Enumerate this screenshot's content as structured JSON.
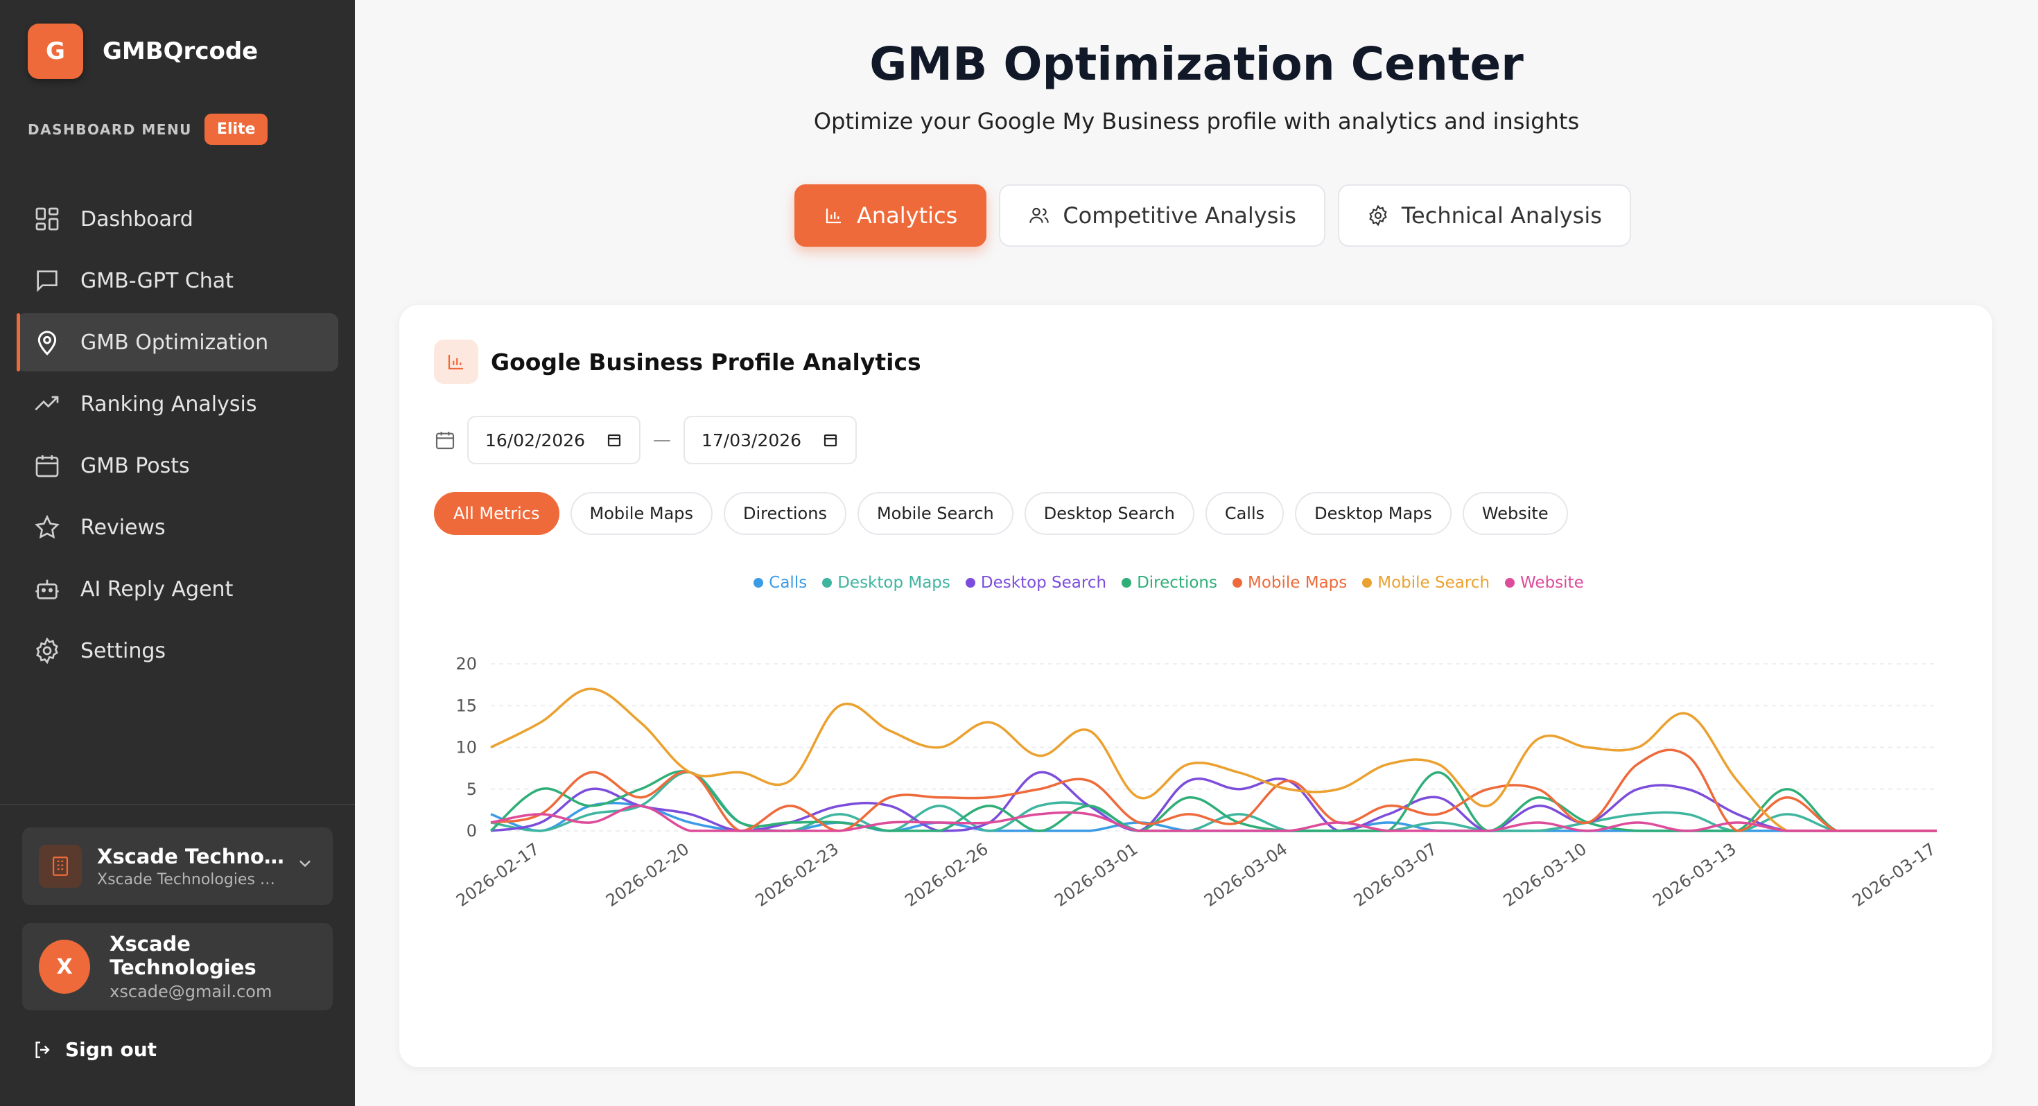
{
  "brand": {
    "logo_letter": "G",
    "name": "GMBQrcode"
  },
  "menu": {
    "heading": "DASHBOARD MENU",
    "plan_badge": "Elite"
  },
  "nav": [
    {
      "label": "Dashboard",
      "icon": "grid-icon",
      "active": false
    },
    {
      "label": "GMB-GPT Chat",
      "icon": "chat-icon",
      "active": false
    },
    {
      "label": "GMB Optimization",
      "icon": "map-pin-icon",
      "active": true
    },
    {
      "label": "Ranking Analysis",
      "icon": "trending-up-icon",
      "active": false
    },
    {
      "label": "GMB Posts",
      "icon": "calendar-icon",
      "active": false
    },
    {
      "label": "Reviews",
      "icon": "star-icon",
      "active": false
    },
    {
      "label": "AI Reply Agent",
      "icon": "bot-icon",
      "active": false
    },
    {
      "label": "Settings",
      "icon": "gear-icon",
      "active": false
    }
  ],
  "business": {
    "name": "Xscade Technolog...",
    "subtitle": "Xscade Technologies Pv..."
  },
  "user": {
    "initial": "X",
    "name": "Xscade Technologies",
    "email": "xscade@gmail.com"
  },
  "signout_label": "Sign out",
  "page": {
    "title": "GMB Optimization Center",
    "subtitle": "Optimize your Google My Business profile with analytics and insights"
  },
  "tabs": [
    {
      "label": "Analytics",
      "icon": "bar-chart-icon",
      "active": true
    },
    {
      "label": "Competitive Analysis",
      "icon": "users-icon",
      "active": false
    },
    {
      "label": "Technical Analysis",
      "icon": "gear-icon",
      "active": false
    }
  ],
  "analytics_card": {
    "title": "Google Business Profile Analytics",
    "start_date": "16/02/2026",
    "end_date": "17/03/2026",
    "date_separator": "—",
    "filters": [
      "All Metrics",
      "Mobile Maps",
      "Directions",
      "Mobile Search",
      "Desktop Search",
      "Calls",
      "Desktop Maps",
      "Website"
    ],
    "active_filter": "All Metrics"
  },
  "colors": {
    "accent": "#ef6a3a",
    "sidebar_bg": "#2d2d2d"
  },
  "chart_data": {
    "type": "line",
    "grid": true,
    "legend_position": "top-center",
    "ylim": [
      0,
      20
    ],
    "yticks": [
      0,
      5,
      10,
      15,
      20
    ],
    "x_tick_labels": [
      "2026-02-17",
      "2026-02-20",
      "2026-02-23",
      "2026-02-26",
      "2026-03-01",
      "2026-03-04",
      "2026-03-07",
      "2026-03-10",
      "2026-03-13",
      "2026-03-17"
    ],
    "x": [
      "2026-02-16",
      "2026-02-17",
      "2026-02-18",
      "2026-02-19",
      "2026-02-20",
      "2026-02-21",
      "2026-02-22",
      "2026-02-23",
      "2026-02-24",
      "2026-02-25",
      "2026-02-26",
      "2026-02-27",
      "2026-02-28",
      "2026-03-01",
      "2026-03-02",
      "2026-03-03",
      "2026-03-04",
      "2026-03-05",
      "2026-03-06",
      "2026-03-07",
      "2026-03-08",
      "2026-03-09",
      "2026-03-10",
      "2026-03-11",
      "2026-03-12",
      "2026-03-13",
      "2026-03-14",
      "2026-03-15",
      "2026-03-16",
      "2026-03-17"
    ],
    "series": [
      {
        "name": "Calls",
        "color": "#3b9be5",
        "values": [
          2,
          0,
          3,
          3,
          1,
          0,
          0,
          1,
          0,
          1,
          0,
          0,
          0,
          1,
          0,
          0,
          0,
          0,
          1,
          0,
          0,
          0,
          0,
          0,
          0,
          0,
          0,
          0,
          0,
          0
        ]
      },
      {
        "name": "Desktop Maps",
        "color": "#3fb5a0",
        "values": [
          1,
          0,
          2,
          3,
          7,
          1,
          0,
          2,
          0,
          3,
          0,
          3,
          3,
          0,
          0,
          2,
          0,
          0,
          0,
          1,
          0,
          0,
          1,
          2,
          2,
          0,
          2,
          0,
          0,
          0
        ]
      },
      {
        "name": "Desktop Search",
        "color": "#7c4ddb",
        "values": [
          0,
          1,
          5,
          3,
          2,
          0,
          1,
          3,
          3,
          0,
          1,
          7,
          3,
          0,
          6,
          5,
          6,
          0,
          2,
          4,
          0,
          3,
          1,
          5,
          5,
          2,
          0,
          0,
          0,
          0
        ]
      },
      {
        "name": "Directions",
        "color": "#2fae78",
        "values": [
          0,
          5,
          3,
          5,
          7,
          1,
          1,
          1,
          0,
          0,
          3,
          0,
          3,
          0,
          4,
          1,
          0,
          0,
          0,
          7,
          0,
          4,
          1,
          0,
          0,
          0,
          5,
          0,
          0,
          0
        ]
      },
      {
        "name": "Mobile Maps",
        "color": "#ee6a3a",
        "values": [
          1,
          2,
          7,
          4,
          7,
          0,
          3,
          0,
          4,
          4,
          4,
          5,
          6,
          1,
          2,
          1,
          6,
          1,
          3,
          2,
          5,
          5,
          1,
          8,
          9,
          0,
          4,
          0,
          0,
          0
        ]
      },
      {
        "name": "Mobile Search",
        "color": "#eba12f",
        "values": [
          10,
          13,
          17,
          13,
          7,
          7,
          6,
          15,
          12,
          10,
          13,
          9,
          12,
          4,
          8,
          7,
          5,
          5,
          8,
          8,
          3,
          11,
          10,
          10,
          14,
          6,
          0,
          0,
          0,
          0
        ]
      },
      {
        "name": "Website",
        "color": "#dd4c9a",
        "values": [
          1,
          2,
          1,
          3,
          0,
          0,
          0,
          0,
          1,
          1,
          1,
          2,
          2,
          0,
          0,
          0,
          0,
          1,
          0,
          0,
          0,
          1,
          0,
          1,
          0,
          1,
          0,
          0,
          0,
          0
        ]
      }
    ]
  }
}
